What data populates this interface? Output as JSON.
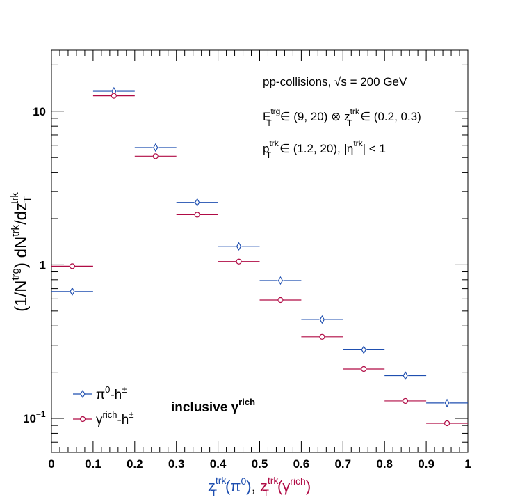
{
  "chart_data": {
    "type": "scatter",
    "y_scale": "log",
    "xlim": [
      0,
      1
    ],
    "ylim": [
      0.06,
      25
    ],
    "grid": false,
    "legend_position": "bottom-left",
    "x_ticks": [
      "0",
      "0.1",
      "0.2",
      "0.3",
      "0.4",
      "0.5",
      "0.6",
      "0.7",
      "0.8",
      "0.9",
      "1"
    ],
    "y_ticks": [
      {
        "value": 0.1,
        "base": "10",
        "exp": "−1"
      },
      {
        "value": 1,
        "label": "1"
      },
      {
        "value": 10,
        "label": "10"
      }
    ],
    "xlabel": {
      "p1": "z",
      "p1_sub": "T",
      "p1_sup": "trk",
      "p1_paren_open": "(π",
      "p1_paren_sup": "0",
      "p1_paren_close": ")",
      "sep": ",",
      "p2": "z",
      "p2_sub": "T",
      "p2_sup": "trk",
      "p2_paren_open": "(γ",
      "p2_paren_sup": "rich",
      "p2_paren_close": ")"
    },
    "ylabel": {
      "open": "(1/N",
      "trg_sup": "trg",
      "mid": ") dN",
      "trk_sup": "trk",
      "slash": "/dz",
      "t_sub": "T",
      "trk_sup2": "trk"
    },
    "annotations": {
      "line1_a": "pp-collisions,",
      "line1_sqrt": "√s",
      "line1_b": "= 200 GeV",
      "line2_E": "E",
      "line2_E_sup": "trg",
      "line2_E_sub": "T",
      "line2_mid": "∈ (9, 20) ⊗ z",
      "line2_z_sup": "trk",
      "line2_z_sub": "T",
      "line2_end": "∈ (0.2, 0.3)",
      "line3_p": "p",
      "line3_p_sup": "trk",
      "line3_p_sub": "T",
      "line3_mid": "∈ (1.2, 20), |η",
      "line3_eta_sup": "trk",
      "line3_end": "| < 1",
      "inclusive": "inclusive γ",
      "inclusive_sup": "rich"
    },
    "series": [
      {
        "name": "π0-h±",
        "legend_main": "π",
        "legend_sup1": "0",
        "legend_mid": "-h",
        "legend_sup2": "±",
        "color": "#1f4fb0",
        "marker": "diamond",
        "x": [
          0.05,
          0.15,
          0.25,
          0.35,
          0.45,
          0.55,
          0.65,
          0.75,
          0.85,
          0.95
        ],
        "y": [
          0.67,
          13.5,
          5.8,
          2.55,
          1.32,
          0.79,
          0.44,
          0.28,
          0.19,
          0.126
        ]
      },
      {
        "name": "γrich-h±",
        "legend_main": "γ",
        "legend_sup1": "rich",
        "legend_mid": "-h",
        "legend_sup2": "±",
        "color": "#b00b45",
        "marker": "circle",
        "x": [
          0.05,
          0.15,
          0.25,
          0.35,
          0.45,
          0.55,
          0.65,
          0.75,
          0.85,
          0.95
        ],
        "y": [
          0.98,
          12.6,
          5.1,
          2.12,
          1.05,
          0.59,
          0.34,
          0.21,
          0.13,
          0.093
        ]
      }
    ],
    "bin_half_width": 0.05
  },
  "colors": {
    "pi0": "#1f4fb0",
    "gamma": "#b00b45",
    "axis": "#000000"
  }
}
